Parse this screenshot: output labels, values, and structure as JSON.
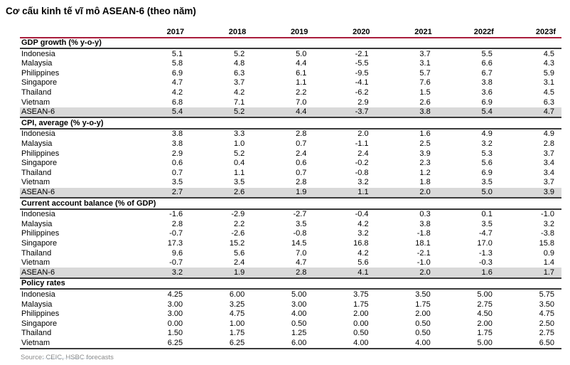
{
  "title": "Cơ cấu kinh tế vĩ mô ASEAN-6 (theo năm)",
  "source_note": "Source: CEIC, HSBC forecasts",
  "colors": {
    "header_rule": "#a91e3c",
    "section_rule": "#3a3a3a",
    "highlight_row_bg": "#d9d9d9",
    "source_text": "#8a8a8a",
    "artifact_dotted": "#c2d4e4"
  },
  "chart_data": {
    "type": "table",
    "title": "Cơ cấu kinh tế vĩ mô ASEAN-6 (theo năm)",
    "year_headers": [
      "2017",
      "2018",
      "2019",
      "2020",
      "2021",
      "2022f",
      "2023f"
    ],
    "sections": [
      {
        "header": "GDP growth (% y-o-y)",
        "rows": [
          {
            "label": "Indonesia",
            "highlight": false,
            "values": [
              "5.1",
              "5.2",
              "5.0",
              "-2.1",
              "3.7",
              "5.5",
              "4.5"
            ]
          },
          {
            "label": "Malaysia",
            "highlight": false,
            "values": [
              "5.8",
              "4.8",
              "4.4",
              "-5.5",
              "3.1",
              "6.6",
              "4.3"
            ]
          },
          {
            "label": "Philippines",
            "highlight": false,
            "values": [
              "6.9",
              "6.3",
              "6.1",
              "-9.5",
              "5.7",
              "6.7",
              "5.9"
            ]
          },
          {
            "label": "Singapore",
            "highlight": false,
            "values": [
              "4.7",
              "3.7",
              "1.1",
              "-4.1",
              "7.6",
              "3.8",
              "3.1"
            ]
          },
          {
            "label": "Thailand",
            "highlight": false,
            "values": [
              "4.2",
              "4.2",
              "2.2",
              "-6.2",
              "1.5",
              "3.6",
              "4.5"
            ]
          },
          {
            "label": "Vietnam",
            "highlight": false,
            "values": [
              "6.8",
              "7.1",
              "7.0",
              "2.9",
              "2.6",
              "6.9",
              "6.3"
            ]
          },
          {
            "label": "ASEAN-6",
            "highlight": true,
            "values": [
              "5.4",
              "5.2",
              "4.4",
              "-3.7",
              "3.8",
              "5.4",
              "4.7"
            ]
          }
        ]
      },
      {
        "header": "CPI, average (% y-o-y)",
        "rows": [
          {
            "label": "Indonesia",
            "highlight": false,
            "values": [
              "3.8",
              "3.3",
              "2.8",
              "2.0",
              "1.6",
              "4.9",
              "4.9"
            ]
          },
          {
            "label": "Malaysia",
            "highlight": false,
            "values": [
              "3.8",
              "1.0",
              "0.7",
              "-1.1",
              "2.5",
              "3.2",
              "2.8"
            ]
          },
          {
            "label": "Philippines",
            "highlight": false,
            "values": [
              "2.9",
              "5.2",
              "2.4",
              "2.4",
              "3.9",
              "5.3",
              "3.7"
            ]
          },
          {
            "label": "Singapore",
            "highlight": false,
            "values": [
              "0.6",
              "0.4",
              "0.6",
              "-0.2",
              "2.3",
              "5.6",
              "3.4"
            ]
          },
          {
            "label": "Thailand",
            "highlight": false,
            "values": [
              "0.7",
              "1.1",
              "0.7",
              "-0.8",
              "1.2",
              "6.9",
              "3.4"
            ]
          },
          {
            "label": "Vietnam",
            "highlight": false,
            "values": [
              "3.5",
              "3.5",
              "2.8",
              "3.2",
              "1.8",
              "3.5",
              "3.7"
            ]
          },
          {
            "label": "ASEAN-6",
            "highlight": true,
            "values": [
              "2.7",
              "2.6",
              "1.9",
              "1.1",
              "2.0",
              "5.0",
              "3.9"
            ]
          }
        ]
      },
      {
        "header": "Current account balance (% of GDP)",
        "rows": [
          {
            "label": "Indonesia",
            "highlight": false,
            "values": [
              "-1.6",
              "-2.9",
              "-2.7",
              "-0.4",
              "0.3",
              "0.1",
              "-1.0"
            ]
          },
          {
            "label": "Malaysia",
            "highlight": false,
            "values": [
              "2.8",
              "2.2",
              "3.5",
              "4.2",
              "3.8",
              "3.5",
              "3.2"
            ]
          },
          {
            "label": "Philippines",
            "highlight": false,
            "values": [
              "-0.7",
              "-2.6",
              "-0.8",
              "3.2",
              "-1.8",
              "-4.7",
              "-3.8"
            ]
          },
          {
            "label": "Singapore",
            "highlight": false,
            "values": [
              "17.3",
              "15.2",
              "14.5",
              "16.8",
              "18.1",
              "17.0",
              "15.8"
            ]
          },
          {
            "label": "Thailand",
            "highlight": false,
            "values": [
              "9.6",
              "5.6",
              "7.0",
              "4.2",
              "-2.1",
              "-1.3",
              "0.9"
            ]
          },
          {
            "label": "Vietnam",
            "highlight": false,
            "values": [
              "-0.7",
              "2.4",
              "4.7",
              "5.6",
              "-1.0",
              "-0.3",
              "1.4"
            ]
          },
          {
            "label": "ASEAN-6",
            "highlight": true,
            "values": [
              "3.2",
              "1.9",
              "2.8",
              "4.1",
              "2.0",
              "1.6",
              "1.7"
            ]
          }
        ]
      },
      {
        "header": "Policy rates",
        "rows": [
          {
            "label": "Indonesia",
            "highlight": false,
            "values": [
              "4.25",
              "6.00",
              "5.00",
              "3.75",
              "3.50",
              "5.00",
              "5.75"
            ]
          },
          {
            "label": "Malaysia",
            "highlight": false,
            "values": [
              "3.00",
              "3.25",
              "3.00",
              "1.75",
              "1.75",
              "2.75",
              "3.50"
            ]
          },
          {
            "label": "Philippines",
            "highlight": false,
            "values": [
              "3.00",
              "4.75",
              "4.00",
              "2.00",
              "2.00",
              "4.50",
              "4.75"
            ]
          },
          {
            "label": "Singapore",
            "highlight": false,
            "values": [
              "0.00",
              "1.00",
              "0.50",
              "0.00",
              "0.50",
              "2.00",
              "2.50"
            ]
          },
          {
            "label": "Thailand",
            "highlight": false,
            "values": [
              "1.50",
              "1.75",
              "1.25",
              "0.50",
              "0.50",
              "1.75",
              "2.75"
            ]
          },
          {
            "label": "Vietnam",
            "highlight": false,
            "values": [
              "6.25",
              "6.25",
              "6.00",
              "4.00",
              "4.00",
              "5.00",
              "6.50"
            ]
          }
        ]
      }
    ]
  }
}
